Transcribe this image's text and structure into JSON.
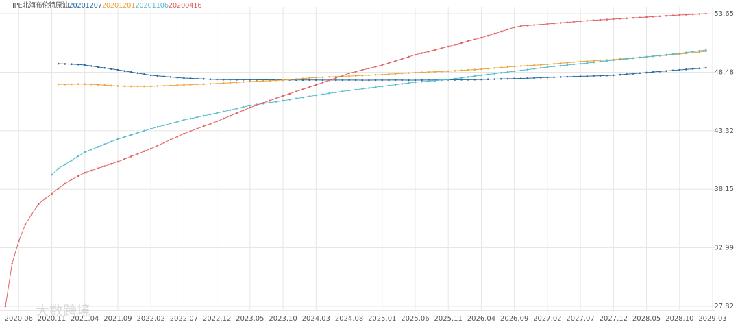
{
  "chart_data": {
    "type": "line",
    "title": "IPE北海布伦特原油",
    "watermark": "大数跨境",
    "categories": [
      null,
      null,
      "2020.06",
      null,
      null,
      null,
      null,
      "2020.11",
      null,
      null,
      null,
      null,
      "2021.04",
      null,
      null,
      null,
      null,
      "2021.09",
      null,
      null,
      null,
      null,
      "2022.02",
      null,
      null,
      null,
      null,
      "2022.07",
      null,
      null,
      null,
      null,
      "2022.12",
      null,
      null,
      null,
      null,
      "2023.05",
      null,
      null,
      null,
      null,
      "2023.10",
      null,
      null,
      null,
      null,
      "2024.03",
      null,
      null,
      null,
      null,
      "2024.08",
      null,
      null,
      null,
      null,
      "2025.01",
      null,
      null,
      null,
      null,
      "2025.06",
      null,
      null,
      null,
      null,
      "2025.11",
      null,
      null,
      null,
      null,
      "2026.04",
      null,
      null,
      null,
      null,
      "2026.09",
      null,
      null,
      null,
      null,
      "2027.02",
      null,
      null,
      null,
      null,
      "2027.07",
      null,
      null,
      null,
      null,
      "2027.12",
      null,
      null,
      null,
      null,
      "2028.05",
      null,
      null,
      null,
      null,
      "2028.10",
      null,
      null,
      null,
      null,
      "2029.03"
    ],
    "ylim": [
      27.82,
      53.65
    ],
    "yticks": [
      27.82,
      32.99,
      38.15,
      43.32,
      48.48,
      53.65
    ],
    "grid": true,
    "series": [
      {
        "name": "20201207",
        "color": "#2b6a9e",
        "values": [
          null,
          null,
          null,
          null,
          null,
          null,
          null,
          null,
          49.23,
          49.21,
          49.19,
          49.16,
          49.11,
          49.03,
          48.94,
          48.86,
          48.77,
          48.69,
          48.59,
          48.5,
          48.4,
          48.31,
          48.21,
          48.16,
          48.11,
          48.06,
          48.01,
          47.96,
          47.94,
          47.91,
          47.89,
          47.86,
          47.84,
          47.83,
          47.83,
          47.82,
          47.82,
          47.82,
          47.82,
          47.81,
          47.81,
          47.81,
          47.81,
          47.8,
          47.8,
          47.8,
          47.8,
          47.8,
          47.79,
          47.79,
          47.79,
          47.79,
          47.79,
          47.79,
          47.78,
          47.78,
          47.79,
          47.79,
          47.79,
          47.8,
          47.79,
          47.78,
          47.78,
          47.79,
          47.79,
          47.8,
          47.8,
          47.81,
          47.81,
          47.82,
          47.82,
          47.83,
          47.84,
          47.86,
          47.87,
          47.89,
          47.9,
          47.92,
          47.93,
          47.95,
          47.97,
          48.0,
          48.02,
          48.04,
          48.06,
          48.08,
          48.1,
          48.12,
          48.13,
          48.15,
          48.17,
          48.19,
          48.21,
          48.26,
          48.31,
          48.35,
          48.4,
          48.45,
          48.5,
          48.55,
          48.59,
          48.64,
          48.69,
          48.73,
          48.78,
          48.82,
          48.87,
          null
        ]
      },
      {
        "name": "20201201",
        "color": "#eea23a",
        "values": [
          null,
          null,
          null,
          null,
          null,
          null,
          null,
          null,
          47.42,
          47.41,
          47.42,
          47.44,
          47.43,
          47.41,
          47.38,
          47.34,
          47.3,
          47.27,
          47.25,
          47.24,
          47.24,
          47.24,
          47.24,
          47.27,
          47.29,
          47.31,
          47.34,
          47.36,
          47.38,
          47.41,
          47.43,
          47.46,
          47.48,
          47.52,
          47.55,
          47.59,
          47.62,
          47.66,
          47.68,
          47.71,
          47.73,
          47.76,
          47.78,
          47.83,
          47.88,
          47.92,
          47.97,
          48.02,
          48.04,
          48.07,
          48.09,
          48.12,
          48.14,
          48.17,
          48.2,
          48.22,
          48.25,
          48.27,
          48.31,
          48.34,
          48.38,
          48.41,
          48.45,
          48.47,
          48.5,
          48.52,
          48.55,
          48.57,
          48.61,
          48.64,
          48.68,
          48.71,
          48.75,
          48.8,
          48.85,
          48.89,
          48.94,
          48.99,
          49.03,
          49.06,
          49.1,
          49.13,
          49.17,
          49.22,
          49.27,
          49.32,
          49.37,
          49.42,
          49.46,
          49.49,
          49.53,
          49.56,
          49.6,
          49.65,
          49.7,
          49.74,
          49.79,
          49.84,
          49.89,
          49.94,
          49.98,
          50.03,
          50.08,
          50.14,
          50.2,
          50.26,
          50.32,
          null
        ]
      },
      {
        "name": "20201106",
        "color": "#55bccb",
        "values": [
          null,
          null,
          null,
          null,
          null,
          null,
          null,
          39.43,
          39.98,
          40.34,
          40.7,
          41.07,
          41.43,
          41.66,
          41.89,
          42.12,
          42.35,
          42.58,
          42.76,
          42.94,
          43.13,
          43.31,
          43.49,
          43.65,
          43.8,
          43.96,
          44.11,
          44.27,
          44.39,
          44.51,
          44.64,
          44.76,
          44.88,
          45.01,
          45.14,
          45.28,
          45.41,
          45.54,
          45.63,
          45.71,
          45.8,
          45.88,
          45.97,
          46.07,
          46.16,
          46.26,
          46.35,
          46.45,
          46.53,
          46.62,
          46.7,
          46.79,
          46.87,
          46.94,
          47.02,
          47.09,
          47.17,
          47.24,
          47.31,
          47.38,
          47.46,
          47.53,
          47.6,
          47.65,
          47.7,
          47.74,
          47.79,
          47.84,
          47.91,
          47.99,
          48.06,
          48.14,
          48.21,
          48.28,
          48.35,
          48.43,
          48.5,
          48.57,
          48.64,
          48.71,
          48.79,
          48.86,
          48.93,
          48.99,
          49.05,
          49.11,
          49.17,
          49.23,
          49.29,
          49.35,
          49.42,
          49.48,
          49.54,
          49.6,
          49.66,
          49.72,
          49.78,
          49.84,
          49.9,
          49.96,
          50.02,
          50.08,
          50.14,
          50.22,
          50.29,
          50.37,
          50.44,
          null
        ]
      },
      {
        "name": "20200416",
        "color": "#e06262",
        "values": [
          27.82,
          31.57,
          33.56,
          35.02,
          35.98,
          36.83,
          37.32,
          37.74,
          38.22,
          38.65,
          39.01,
          39.31,
          39.61,
          39.8,
          40.0,
          40.19,
          40.39,
          40.58,
          40.81,
          41.04,
          41.27,
          41.5,
          41.73,
          42.0,
          42.26,
          42.53,
          42.8,
          43.06,
          43.28,
          43.5,
          43.71,
          43.93,
          44.15,
          44.39,
          44.63,
          44.88,
          45.12,
          45.36,
          45.57,
          45.77,
          45.98,
          46.18,
          46.39,
          46.58,
          46.78,
          46.97,
          47.17,
          47.36,
          47.57,
          47.77,
          47.98,
          48.18,
          48.39,
          48.53,
          48.68,
          48.82,
          48.97,
          49.11,
          49.29,
          49.47,
          49.66,
          49.84,
          50.02,
          50.17,
          50.31,
          50.46,
          50.6,
          50.75,
          50.91,
          51.06,
          51.22,
          51.37,
          51.53,
          51.71,
          51.89,
          52.08,
          52.26,
          52.44,
          52.56,
          52.6,
          52.65,
          52.69,
          52.74,
          52.79,
          52.84,
          52.88,
          52.93,
          52.98,
          53.02,
          53.06,
          53.1,
          53.13,
          53.17,
          53.21,
          53.24,
          53.28,
          53.31,
          53.35,
          53.39,
          53.42,
          53.46,
          53.49,
          53.53,
          53.56,
          53.59,
          53.62,
          53.65,
          null
        ]
      }
    ]
  }
}
